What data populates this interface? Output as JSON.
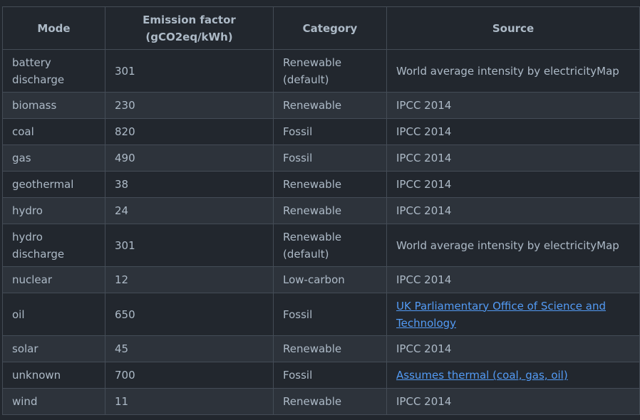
{
  "table": {
    "header": [
      "Mode",
      "Emission factor (gCO2eq/kWh)",
      "Category",
      "Source"
    ],
    "rows": [
      [
        "battery discharge",
        301,
        "Renewable (default)",
        {
          "text": "World average intensity by electricityMap",
          "link": false
        }
      ],
      [
        "biomass",
        230,
        "Renewable",
        {
          "text": "IPCC 2014",
          "link": false
        }
      ],
      [
        "coal",
        820,
        "Fossil",
        {
          "text": "IPCC 2014",
          "link": false
        }
      ],
      [
        "gas",
        490,
        "Fossil",
        {
          "text": "IPCC 2014",
          "link": false
        }
      ],
      [
        "geothermal",
        38,
        "Renewable",
        {
          "text": "IPCC 2014",
          "link": false
        }
      ],
      [
        "hydro",
        24,
        "Renewable",
        {
          "text": "IPCC 2014",
          "link": false
        }
      ],
      [
        "hydro discharge",
        301,
        "Renewable (default)",
        {
          "text": "World average intensity by electricityMap",
          "link": false
        }
      ],
      [
        "nuclear",
        12,
        "Low-carbon",
        {
          "text": "IPCC 2014",
          "link": false
        }
      ],
      [
        "oil",
        650,
        "Fossil",
        {
          "text": "UK Parliamentary Office of Science and Technology",
          "link": true
        }
      ],
      [
        "solar",
        45,
        "Renewable",
        {
          "text": "IPCC 2014",
          "link": false
        }
      ],
      [
        "unknown",
        700,
        "Fossil",
        {
          "text": "Assumes thermal (coal, gas, oil)",
          "link": true
        }
      ],
      [
        "wind",
        11,
        "Renewable",
        {
          "text": "IPCC 2014",
          "link": false
        }
      ]
    ]
  }
}
